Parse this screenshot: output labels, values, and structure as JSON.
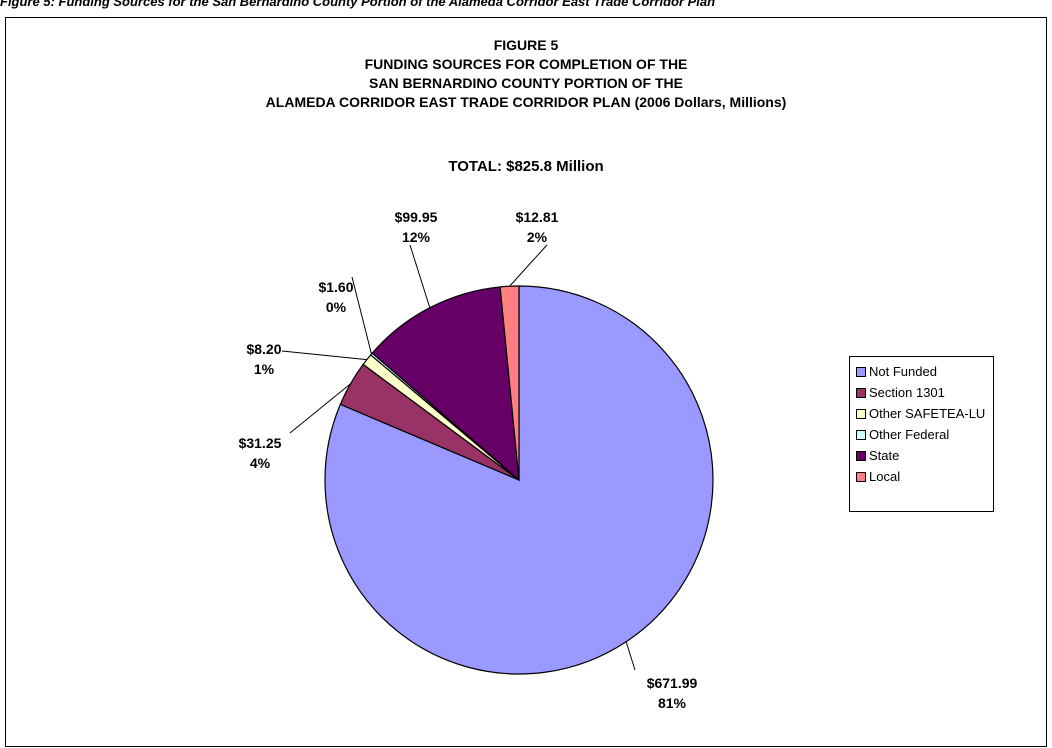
{
  "page": {
    "caption": "Figure 5: Funding Sources for the San Bernardino County Portion of the Alameda Corridor East Trade Corridor Plan"
  },
  "chart_data": {
    "type": "pie",
    "title_lines": [
      "FIGURE 5",
      "FUNDING SOURCES FOR COMPLETION OF THE",
      "SAN BERNARDINO COUNTY PORTION OF THE",
      "ALAMEDA CORRIDOR EAST TRADE CORRIDOR PLAN  (2006 Dollars, Millions)"
    ],
    "subtitle": "TOTAL: $825.8 Million",
    "legend_position": "right",
    "slices": [
      {
        "name": "Not Funded",
        "value": 671.99,
        "value_label": "$671.99",
        "percent_label": "81%",
        "color": "#9999ff"
      },
      {
        "name": "Section 1301",
        "value": 31.25,
        "value_label": "$31.25",
        "percent_label": "4%",
        "color": "#993366"
      },
      {
        "name": "Other SAFETEA-LU",
        "value": 8.2,
        "value_label": "$8.20",
        "percent_label": "1%",
        "color": "#ffffcc"
      },
      {
        "name": "Other Federal",
        "value": 1.6,
        "value_label": "$1.60",
        "percent_label": "0%",
        "color": "#ccffff"
      },
      {
        "name": "State",
        "value": 99.95,
        "value_label": "$99.95",
        "percent_label": "12%",
        "color": "#660066"
      },
      {
        "name": "Local",
        "value": 12.81,
        "value_label": "$12.81",
        "percent_label": "2%",
        "color": "#ff8080"
      }
    ]
  }
}
